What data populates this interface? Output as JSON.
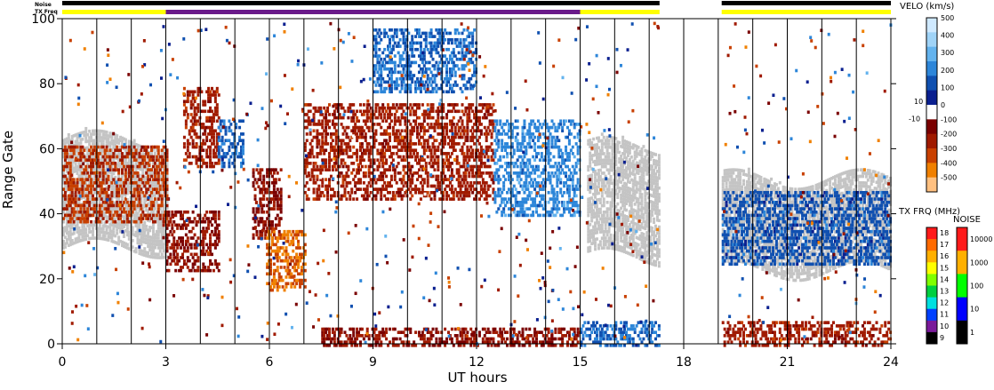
{
  "chart_data": {
    "type": "heatmap",
    "xlabel": "UT hours",
    "ylabel": "Range Gate",
    "xlim": [
      0,
      24
    ],
    "ylim": [
      0,
      100
    ],
    "x_ticks": [
      "0",
      "3",
      "6",
      "9",
      "12",
      "15",
      "18",
      "21",
      "24"
    ],
    "y_ticks": [
      "0",
      "20",
      "40",
      "60",
      "80",
      "100"
    ],
    "top_bars": {
      "noise_label": "Noise",
      "txfreq_label": "TX Freq",
      "noise_segments": [
        {
          "from": 0,
          "to": 17.3,
          "color": "#000000"
        },
        {
          "from": 19.1,
          "to": 24,
          "color": "#000000"
        }
      ],
      "txfreq_segments": [
        {
          "from": 0,
          "to": 3,
          "color": "#ffff00"
        },
        {
          "from": 3,
          "to": 15,
          "color": "#6a1a8a"
        },
        {
          "from": 15,
          "to": 17.3,
          "color": "#ffff00"
        },
        {
          "from": 19.1,
          "to": 24,
          "color": "#ffff00"
        }
      ]
    },
    "data_gap": [
      17.3,
      19.1
    ],
    "ground_scatter_color": "#c4c4c4",
    "ground_scatter_bands": [
      {
        "from": 0,
        "to": 3,
        "low": 30,
        "high": 64
      },
      {
        "from": 15.2,
        "to": 17.3,
        "low": 27,
        "high": 62
      },
      {
        "from": 19.1,
        "to": 24,
        "low": 23,
        "high": 52
      }
    ],
    "velocity_regions": [
      {
        "from": 0,
        "to": 3,
        "low": 38,
        "high": 62,
        "vel": -200
      },
      {
        "from": 3,
        "to": 4.5,
        "low": 23,
        "high": 42,
        "vel": -100
      },
      {
        "from": 3.5,
        "to": 4.5,
        "low": 55,
        "high": 80,
        "vel": -150
      },
      {
        "from": 4.5,
        "to": 5.2,
        "low": 55,
        "high": 70,
        "vel": 200
      },
      {
        "from": 5.5,
        "to": 6.3,
        "low": 33,
        "high": 55,
        "vel": -100
      },
      {
        "from": 5.9,
        "to": 7.0,
        "low": 17,
        "high": 36,
        "vel": -300
      },
      {
        "from": 7.0,
        "to": 12.5,
        "low": 45,
        "high": 75,
        "vel": -150
      },
      {
        "from": 9.0,
        "to": 12.0,
        "low": 78,
        "high": 98,
        "vel": 200
      },
      {
        "from": 12.5,
        "to": 15.0,
        "low": 40,
        "high": 70,
        "vel": 250
      },
      {
        "from": 7.5,
        "to": 15.0,
        "low": 0,
        "high": 6,
        "vel": -100
      },
      {
        "from": 15.0,
        "to": 17.3,
        "low": 0,
        "high": 8,
        "vel": 200
      },
      {
        "from": 19.1,
        "to": 24,
        "low": 0,
        "high": 8,
        "vel": -150
      },
      {
        "from": 19.1,
        "to": 24,
        "low": 25,
        "high": 48,
        "vel": 150
      }
    ],
    "velocity_scale": {
      "title": "VELO (km/s)",
      "ticks": [
        "500",
        "400",
        "300",
        "200",
        "100",
        "0",
        "-100",
        "-200",
        "-300",
        "-400",
        "-500"
      ],
      "extra_labels": [
        "10",
        "-10"
      ],
      "colors": [
        "#cfe9ff",
        "#9fd3f7",
        "#63b3ee",
        "#2d86d9",
        "#1050b0",
        "#0a1f8f",
        "#ffffff",
        "#7a0000",
        "#a01a00",
        "#c84000",
        "#f08000",
        "#ffc080"
      ]
    },
    "txfreq_scale": {
      "title": "TX FRQ (MHz)",
      "ticks": [
        "18",
        "17",
        "16",
        "15",
        "14",
        "13",
        "12",
        "11",
        "10",
        "9"
      ],
      "colors": [
        "#ff1a1a",
        "#ff6a00",
        "#ffb000",
        "#ffff00",
        "#80ff00",
        "#00d040",
        "#00e0e0",
        "#0040ff",
        "#7a1a9a",
        "#000000"
      ]
    },
    "noise_scale": {
      "title": "NOISE",
      "ticks": [
        "10000",
        "1000",
        "100",
        "10",
        "1"
      ],
      "colors": [
        "#ff1a1a",
        "#ffb000",
        "#00ff00",
        "#0000ff",
        "#000000"
      ]
    }
  }
}
